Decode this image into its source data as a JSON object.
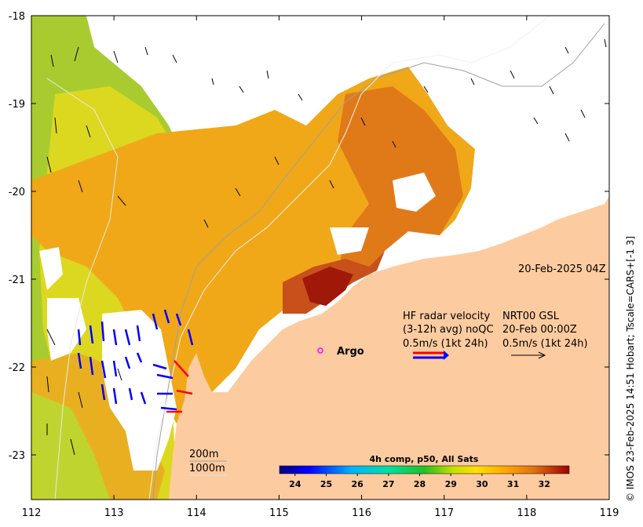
{
  "map": {
    "date_label": "20-Feb-2025 04Z",
    "hf_radar": {
      "line1": "HF radar velocity",
      "line2": "(3-12h avg) noQC",
      "line3": "0.5m/s (1kt 24h)"
    },
    "nrt": {
      "line1": "NRT00 GSL",
      "line2": "20-Feb 00:00Z",
      "line3": "0.5m/s (1kt 24h)"
    },
    "argo_label": "Argo",
    "isobaths": [
      "200m",
      "1000m"
    ],
    "credit": "© IMOS 23-Feb-2025 14:51 Hobart; Tscale=CARS+[-1 3]",
    "colors": {
      "land": "#fdcba0",
      "radar_vector": "#0000ff",
      "radar_alt_vector": "#ff0000",
      "argo": "#ff00ff"
    }
  },
  "axes": {
    "x_ticks": [
      "112",
      "113",
      "114",
      "115",
      "116",
      "117",
      "118",
      "119"
    ],
    "y_ticks": [
      "-18",
      "-19",
      "-20",
      "-21",
      "-22",
      "-23"
    ]
  },
  "colorbar": {
    "title": "4h comp, p50, All Sats",
    "ticks": [
      "24",
      "25",
      "26",
      "27",
      "28",
      "29",
      "30",
      "31",
      "32"
    ],
    "range": [
      23.5,
      32.8
    ]
  }
}
